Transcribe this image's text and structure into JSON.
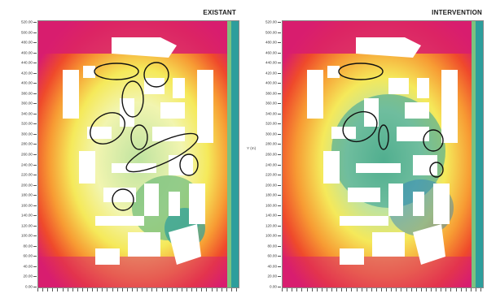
{
  "panels": [
    {
      "title": "EXISTANT",
      "y_axis_title": ""
    },
    {
      "title": "INTERVENTION",
      "y_axis_title": "Y (m)"
    }
  ],
  "y_axis": {
    "ticks": [
      "520.00",
      "500.00",
      "480.00",
      "460.00",
      "440.00",
      "420.00",
      "400.00",
      "380.00",
      "360.00",
      "340.00",
      "320.00",
      "300.00",
      "280.00",
      "260.00",
      "240.00",
      "220.00",
      "200.00",
      "180.00",
      "160.00",
      "140.00",
      "120.00",
      "100.00",
      "80.00",
      "60.00",
      "40.00",
      "20.00",
      "0.00"
    ]
  },
  "colors": {
    "hot": "#d81d6f",
    "warm": "#ef4a2b",
    "orange": "#f79a33",
    "yellow": "#f5e95a",
    "light": "#f2f5b0",
    "green": "#7cc27f",
    "teal": "#2d9e9c",
    "blue": "#2b7fbf",
    "buildings": "#ffffff",
    "markers": "#111111"
  },
  "legend_bar": "vertical color scale on right edge of each map"
}
